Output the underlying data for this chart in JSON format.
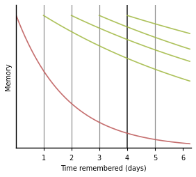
{
  "title": "",
  "xlabel": "Time remembered (days)",
  "ylabel": "Memory",
  "xlim": [
    0,
    6.3
  ],
  "ylim": [
    0,
    1.08
  ],
  "xticks": [
    1,
    2,
    3,
    4,
    5,
    6
  ],
  "background_color": "#ffffff",
  "vlines": [
    1,
    2,
    3,
    4,
    5
  ],
  "vline_colors": [
    "#909090",
    "#909090",
    "#909090",
    "#303030",
    "#909090"
  ],
  "vline_widths": [
    0.9,
    0.9,
    0.9,
    1.2,
    0.9
  ],
  "curves": [
    {
      "start_x": 0.02,
      "start_y": 1.0,
      "decay": 0.55,
      "color": "#c06060",
      "alpha": 0.9,
      "linewidth": 1.2,
      "end_x": 6.25
    },
    {
      "start_x": 1.0,
      "start_y": 1.0,
      "decay": 0.13,
      "color": "#a0b840",
      "alpha": 0.85,
      "linewidth": 1.2,
      "end_x": 6.25
    },
    {
      "start_x": 2.0,
      "start_y": 1.0,
      "decay": 0.1,
      "color": "#a0b840",
      "alpha": 0.85,
      "linewidth": 1.2,
      "end_x": 6.25
    },
    {
      "start_x": 3.0,
      "start_y": 1.0,
      "decay": 0.09,
      "color": "#a0b840",
      "alpha": 0.85,
      "linewidth": 1.2,
      "end_x": 6.25
    },
    {
      "start_x": 4.0,
      "start_y": 1.0,
      "decay": 0.065,
      "color": "#a0b840",
      "alpha": 0.85,
      "linewidth": 1.2,
      "end_x": 6.25
    }
  ]
}
